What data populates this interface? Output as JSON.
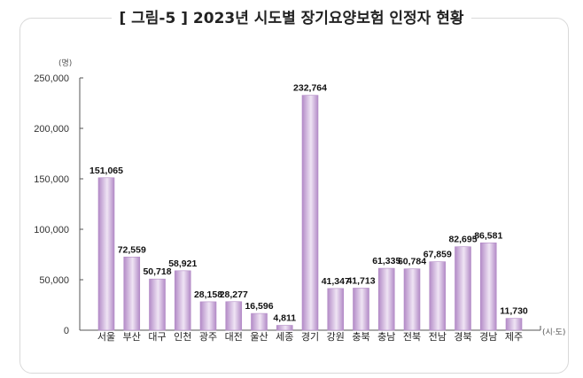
{
  "chart_data": {
    "type": "bar",
    "title": "[ 그림-5 ] 2023년 시도별 장기요양보험 인정자 현황",
    "y_unit": "(명)",
    "x_unit": "(시·도)",
    "ylim": [
      0,
      250000
    ],
    "y_ticks": [
      0,
      50000,
      100000,
      150000,
      200000,
      250000
    ],
    "y_tick_labels": [
      "0",
      "50,000",
      "100,000",
      "150,000",
      "200,000",
      "250,000"
    ],
    "grid": false,
    "categories": [
      "서울",
      "부산",
      "대구",
      "인천",
      "광주",
      "대전",
      "울산",
      "세종",
      "경기",
      "강원",
      "충북",
      "충남",
      "전북",
      "전남",
      "경북",
      "경남",
      "제주"
    ],
    "values": [
      151065,
      72559,
      50718,
      58921,
      28158,
      28277,
      16596,
      4811,
      232764,
      41347,
      41713,
      61335,
      60784,
      67859,
      82695,
      86581,
      11730
    ],
    "value_labels": [
      "151,065",
      "72,559",
      "50,718",
      "58,921",
      "28,158",
      "28,277",
      "16,596",
      "4,811",
      "232,764",
      "41,347",
      "41,713",
      "61,335",
      "60,784",
      "67,859",
      "82,695",
      "86,581",
      "11,730"
    ],
    "colors": {
      "bar_edge": "#b38bc7",
      "bar_center": "#efe4f4"
    }
  }
}
